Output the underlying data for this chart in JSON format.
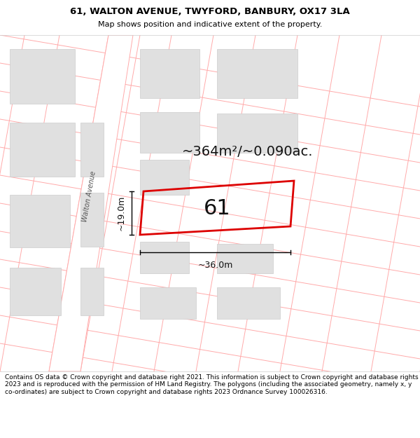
{
  "title_line1": "61, WALTON AVENUE, TWYFORD, BANBURY, OX17 3LA",
  "title_line2": "Map shows position and indicative extent of the property.",
  "footer_text": "Contains OS data © Crown copyright and database right 2021. This information is subject to Crown copyright and database rights 2023 and is reproduced with the permission of HM Land Registry. The polygons (including the associated geometry, namely x, y co-ordinates) are subject to Crown copyright and database rights 2023 Ordnance Survey 100026316.",
  "area_label": "~364m²/~0.090ac.",
  "plot_number": "61",
  "dim_width": "~36.0m",
  "dim_height": "~19.0m",
  "street_label": "Walton Avenue",
  "plot_edge_color": "#dd0000",
  "pink_line_color": "#ffaaaa",
  "building_fill": "#e0e0e0",
  "building_edge": "#cccccc",
  "road_fill": "#f5f5f5",
  "map_bg": "#ffffff",
  "title_fontsize": 9.5,
  "subtitle_fontsize": 8.0,
  "area_fontsize": 14,
  "plot_num_fontsize": 22,
  "dim_fontsize": 9,
  "footer_fontsize": 6.5
}
